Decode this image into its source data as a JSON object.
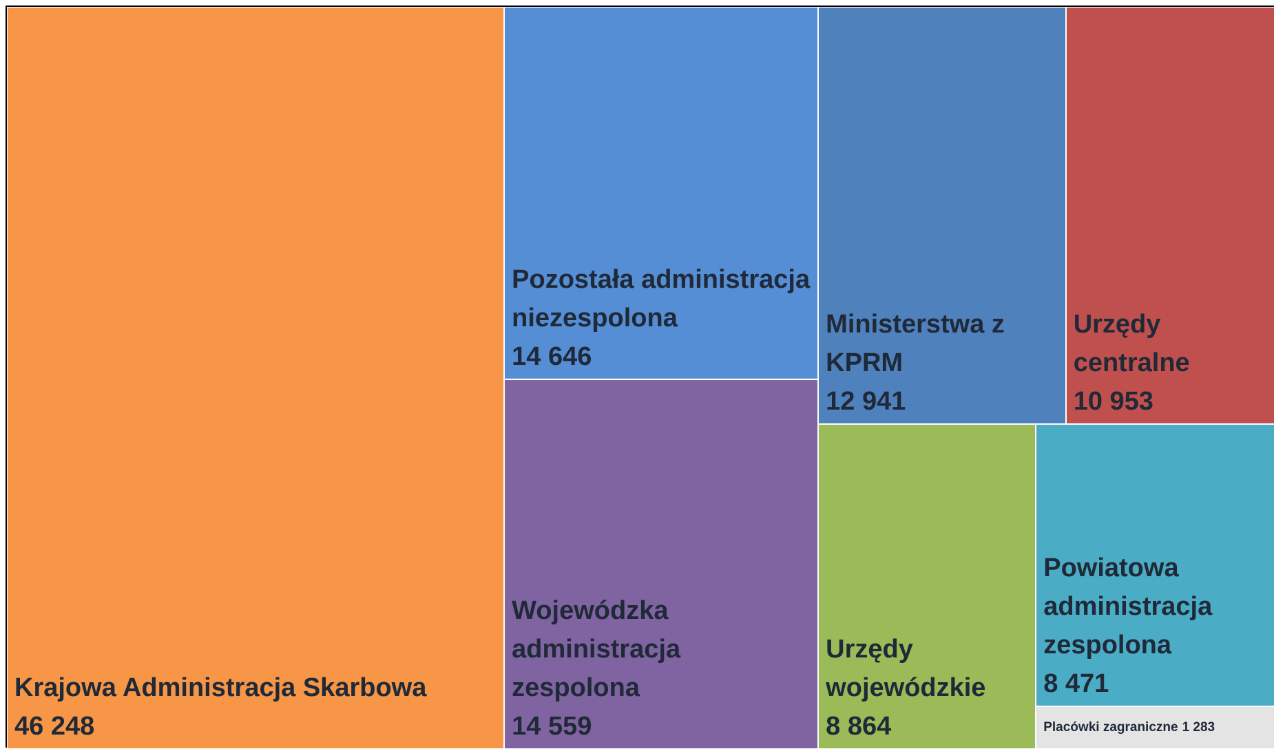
{
  "chart_data": {
    "type": "treemap",
    "categories": [
      "Krajowa Administracja Skarbowa",
      "Pozostała administracja niezespolona",
      "Wojewódzka administracja zespolona",
      "Ministerstwa z KPRM",
      "Urzędy centralne",
      "Urzędy wojewódzkie",
      "Powiatowa administracja zespolona",
      "Placówki zagraniczne"
    ],
    "values": [
      46248,
      14646,
      14559,
      12941,
      10953,
      8864,
      8471,
      1283
    ],
    "value_labels": [
      "46 248",
      "14 646",
      "14 559",
      "12 941",
      "10 953",
      "8 864",
      "8 471",
      "1 283"
    ],
    "colors": [
      "#f79646",
      "#558ed5",
      "#8064a2",
      "#4f81bd",
      "#c0504d",
      "#9bbb59",
      "#4bacc6",
      "#e4e4e4"
    ]
  }
}
